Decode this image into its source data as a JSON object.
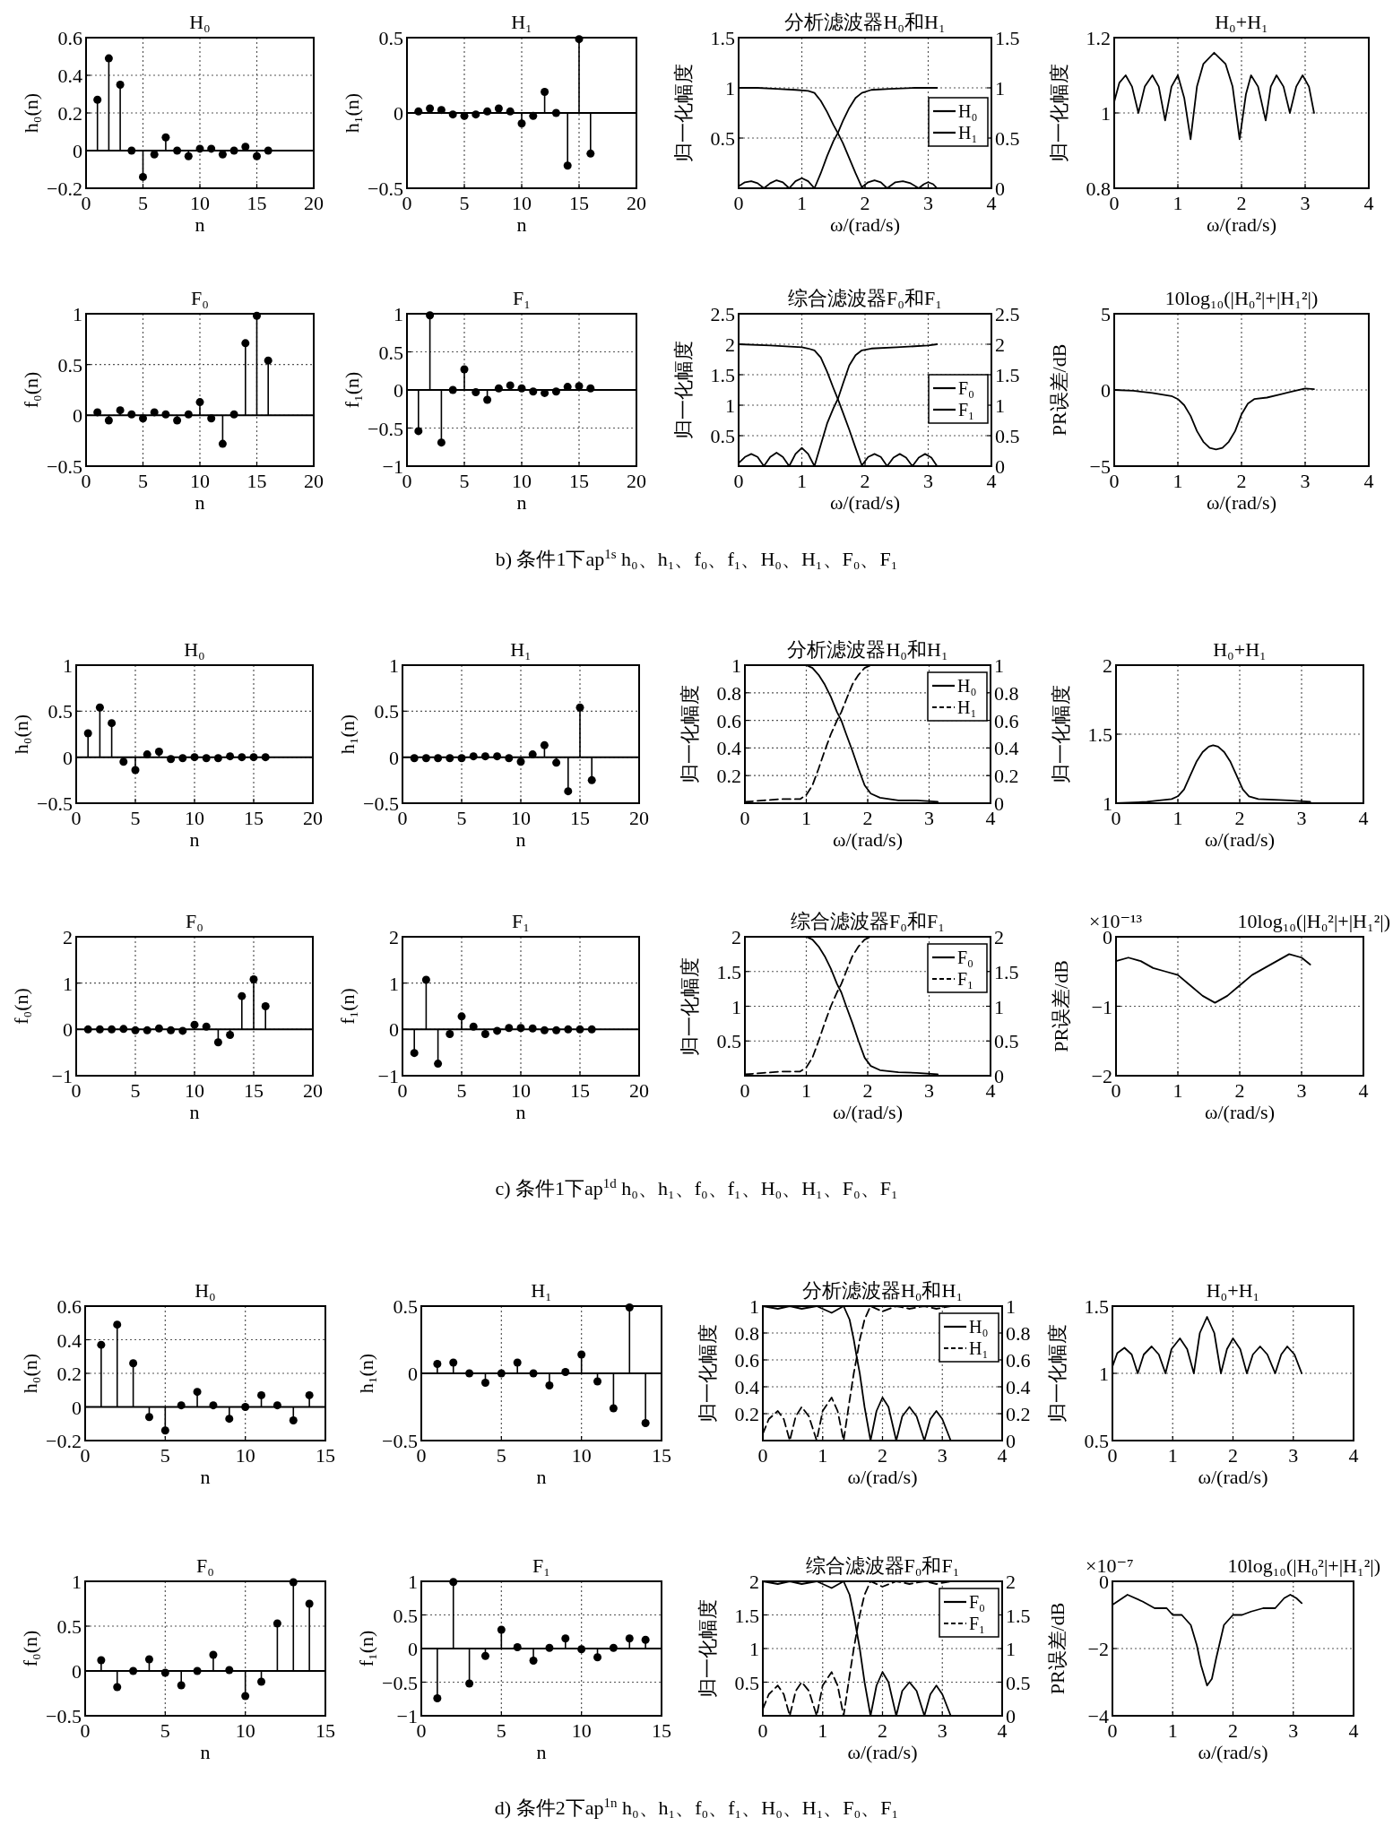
{
  "chart_data": [
    {
      "type": "lollipop",
      "title": "H₀",
      "xlabel": "n",
      "ylabel": "h₀(n)",
      "xlim": [
        0,
        20
      ],
      "xticks": [
        0,
        5,
        10,
        15,
        20
      ],
      "ylim": [
        -0.2,
        0.6
      ],
      "yticks": [
        -0.2,
        0,
        0.2,
        0.4,
        0.6
      ],
      "grid": true,
      "marker": "circle",
      "annotations": [
        "b) 条件1下ap$^{1s}$ h₀、h₁、f₀、f₁、H₀、H₁、F₀、F₁"
      ],
      "series": [
        {
          "color": "#000000",
          "x": [
            1,
            2,
            3,
            4,
            5,
            6,
            7,
            8,
            9,
            10,
            11,
            12,
            13,
            14,
            15,
            16
          ],
          "values": [
            0.27,
            0.49,
            0.35,
            0.0,
            -0.14,
            -0.02,
            0.07,
            0.0,
            -0.03,
            0.01,
            0.01,
            -0.02,
            0.0,
            0.02,
            -0.03,
            0.0
          ]
        }
      ]
    },
    {
      "type": "lollipop",
      "title": "H₁",
      "xlabel": "n",
      "ylabel": "h₁(n)",
      "xlim": [
        0,
        20
      ],
      "xticks": [
        0,
        5,
        10,
        15,
        20
      ],
      "ylim": [
        -0.5,
        0.5
      ],
      "yticks": [
        -0.5,
        0,
        0.5
      ],
      "grid": true,
      "marker": "circle",
      "series": [
        {
          "color": "#000000",
          "x": [
            1,
            2,
            3,
            4,
            5,
            6,
            7,
            8,
            9,
            10,
            11,
            12,
            13,
            14,
            15,
            16
          ],
          "values": [
            0.01,
            0.03,
            0.02,
            -0.01,
            -0.02,
            -0.01,
            0.01,
            0.03,
            0.01,
            -0.07,
            -0.02,
            0.14,
            0.0,
            -0.35,
            0.49,
            -0.27
          ]
        }
      ]
    },
    {
      "type": "line",
      "title": "分析滤波器H₀和H₁",
      "xlabel": "ω/(rad/s)",
      "ylabel": "归一化幅度",
      "xlim": [
        0,
        4
      ],
      "xticks": [
        0,
        1,
        2,
        3,
        4
      ],
      "ylim": [
        0,
        1.5
      ],
      "yticks": [
        0.5,
        1,
        1.5
      ],
      "y2lim": [
        0,
        1.5
      ],
      "y2ticks": [
        0,
        0.5,
        1,
        1.5
      ],
      "grid": true,
      "legend": "right",
      "series": [
        {
          "name": "H₀",
          "color": "#000000",
          "line_style": "solid",
          "x": [
            0,
            0.3,
            0.6,
            0.9,
            1.1,
            1.2,
            1.3,
            1.4,
            1.5,
            1.57,
            1.65,
            1.75,
            1.85,
            1.95,
            2.05,
            2.15,
            2.25,
            2.35,
            2.48,
            2.6,
            2.72,
            2.85,
            2.93,
            3.0,
            3.08,
            3.14
          ],
          "values": [
            1.0,
            1.0,
            0.99,
            0.98,
            0.97,
            0.95,
            0.87,
            0.76,
            0.63,
            0.55,
            0.45,
            0.3,
            0.15,
            0.01,
            0.06,
            0.08,
            0.06,
            0.0,
            0.06,
            0.07,
            0.05,
            0.0,
            0.04,
            0.06,
            0.04,
            0.0
          ]
        },
        {
          "name": "H₁",
          "color": "#000000",
          "line_style": "solid",
          "x": [
            0,
            0.1,
            0.2,
            0.3,
            0.4,
            0.5,
            0.6,
            0.7,
            0.8,
            0.9,
            1.0,
            1.1,
            1.2,
            1.3,
            1.4,
            1.5,
            1.57,
            1.65,
            1.75,
            1.85,
            1.95,
            2.1,
            2.4,
            2.8,
            3.14
          ],
          "values": [
            0.02,
            0.06,
            0.07,
            0.05,
            0.0,
            0.05,
            0.08,
            0.06,
            0.0,
            0.07,
            0.1,
            0.07,
            0.0,
            0.15,
            0.32,
            0.47,
            0.55,
            0.67,
            0.8,
            0.9,
            0.95,
            0.98,
            0.99,
            1.0,
            1.0
          ]
        }
      ]
    },
    {
      "type": "line",
      "title": "H₀+H₁",
      "xlabel": "ω/(rad/s)",
      "ylabel": "归一化幅度",
      "xlim": [
        0,
        4
      ],
      "xticks": [
        0,
        1,
        2,
        3,
        4
      ],
      "ylim": [
        0.8,
        1.2
      ],
      "yticks": [
        0.8,
        1,
        1.2
      ],
      "grid": true,
      "series": [
        {
          "color": "#000000",
          "x": [
            0,
            0.08,
            0.18,
            0.28,
            0.38,
            0.48,
            0.6,
            0.7,
            0.8,
            0.9,
            1.0,
            1.1,
            1.2,
            1.3,
            1.4,
            1.57,
            1.75,
            1.86,
            1.97,
            2.07,
            2.15,
            2.26,
            2.38,
            2.46,
            2.55,
            2.66,
            2.76,
            2.86,
            2.96,
            3.06,
            3.14
          ],
          "values": [
            1.03,
            1.08,
            1.1,
            1.07,
            1.0,
            1.07,
            1.1,
            1.07,
            0.98,
            1.07,
            1.1,
            1.04,
            0.93,
            1.07,
            1.13,
            1.16,
            1.13,
            1.07,
            0.93,
            1.05,
            1.1,
            1.07,
            0.98,
            1.07,
            1.1,
            1.07,
            1.0,
            1.07,
            1.1,
            1.07,
            1.0
          ]
        }
      ]
    },
    {
      "type": "lollipop",
      "title": "F₀",
      "xlabel": "n",
      "ylabel": "f₀(n)",
      "xlim": [
        0,
        20
      ],
      "xticks": [
        0,
        5,
        10,
        15,
        20
      ],
      "ylim": [
        -0.5,
        1
      ],
      "yticks": [
        -0.5,
        0,
        0.5,
        1
      ],
      "grid": true,
      "marker": "circle",
      "series": [
        {
          "color": "#000000",
          "x": [
            1,
            2,
            3,
            4,
            5,
            6,
            7,
            8,
            9,
            10,
            11,
            12,
            13,
            14,
            15,
            16
          ],
          "values": [
            0.03,
            -0.05,
            0.05,
            0.01,
            -0.03,
            0.03,
            0.01,
            -0.05,
            0.01,
            0.13,
            -0.03,
            -0.28,
            0.01,
            0.71,
            0.98,
            0.54
          ]
        }
      ]
    },
    {
      "type": "lollipop",
      "title": "F₁",
      "xlabel": "n",
      "ylabel": "f₁(n)",
      "xlim": [
        0,
        20
      ],
      "xticks": [
        0,
        5,
        10,
        15,
        20
      ],
      "ylim": [
        -1,
        1
      ],
      "yticks": [
        -1,
        -0.5,
        0,
        0.5,
        1
      ],
      "grid": true,
      "marker": "circle",
      "series": [
        {
          "color": "#000000",
          "x": [
            1,
            2,
            3,
            4,
            5,
            6,
            7,
            8,
            9,
            10,
            11,
            12,
            13,
            14,
            15,
            16
          ],
          "values": [
            -0.54,
            0.98,
            -0.69,
            0.0,
            0.27,
            -0.03,
            -0.13,
            0.02,
            0.06,
            0.02,
            -0.02,
            -0.04,
            -0.02,
            0.04,
            0.05,
            0.02
          ]
        }
      ]
    },
    {
      "type": "line",
      "title": "综合滤波器F₀和F₁",
      "xlabel": "ω/(rad/s)",
      "ylabel": "归一化幅度",
      "xlim": [
        0,
        4
      ],
      "xticks": [
        0,
        1,
        2,
        3,
        4
      ],
      "ylim": [
        0,
        2.5
      ],
      "yticks": [
        0.5,
        1,
        1.5,
        2,
        2.5
      ],
      "y2lim": [
        0,
        2.5
      ],
      "y2ticks": [
        0,
        0.5,
        1,
        1.5,
        2,
        2.5
      ],
      "grid": true,
      "legend": "right",
      "series": [
        {
          "name": "F₀",
          "color": "#000000",
          "line_style": "solid",
          "x": [
            0,
            0.5,
            1.0,
            1.1,
            1.2,
            1.3,
            1.4,
            1.5,
            1.57,
            1.65,
            1.75,
            1.85,
            1.95,
            2.05,
            2.15,
            2.25,
            2.35,
            2.45,
            2.55,
            2.65,
            2.75,
            2.85,
            2.95,
            3.05,
            3.14
          ],
          "values": [
            2.0,
            1.98,
            1.95,
            1.93,
            1.9,
            1.78,
            1.55,
            1.28,
            1.1,
            0.88,
            0.6,
            0.3,
            0.01,
            0.15,
            0.2,
            0.15,
            0.0,
            0.14,
            0.2,
            0.14,
            0.0,
            0.14,
            0.2,
            0.14,
            0.0
          ]
        },
        {
          "name": "F₁",
          "color": "#000000",
          "line_style": "solid",
          "x": [
            0,
            0.1,
            0.2,
            0.3,
            0.4,
            0.5,
            0.6,
            0.7,
            0.8,
            0.9,
            1.0,
            1.1,
            1.2,
            1.3,
            1.4,
            1.5,
            1.57,
            1.65,
            1.75,
            1.85,
            1.95,
            2.1,
            2.5,
            3.0,
            3.14
          ],
          "values": [
            0.05,
            0.15,
            0.2,
            0.15,
            0.0,
            0.15,
            0.22,
            0.15,
            0.0,
            0.2,
            0.3,
            0.2,
            0.0,
            0.35,
            0.7,
            0.95,
            1.1,
            1.35,
            1.65,
            1.82,
            1.9,
            1.93,
            1.95,
            1.98,
            2.0
          ]
        }
      ]
    },
    {
      "type": "line",
      "title": "10log₁₀(|H₀²|+|H₁²|)",
      "xlabel": "ω/(rad/s)",
      "ylabel": "PR误差/dB",
      "xlim": [
        0,
        4
      ],
      "xticks": [
        0,
        1,
        2,
        3,
        4
      ],
      "ylim": [
        -5,
        5
      ],
      "yticks": [
        -5,
        0,
        5
      ],
      "grid": true,
      "series": [
        {
          "color": "#000000",
          "x": [
            0,
            0.3,
            0.6,
            0.9,
            1.0,
            1.1,
            1.2,
            1.3,
            1.4,
            1.5,
            1.6,
            1.7,
            1.8,
            1.9,
            2.0,
            2.1,
            2.2,
            2.4,
            2.6,
            2.8,
            3.0,
            3.14
          ],
          "values": [
            0.0,
            -0.05,
            -0.2,
            -0.4,
            -0.6,
            -1.0,
            -1.7,
            -2.7,
            -3.4,
            -3.8,
            -3.9,
            -3.8,
            -3.4,
            -2.7,
            -1.6,
            -0.9,
            -0.6,
            -0.5,
            -0.3,
            -0.1,
            0.1,
            0.05
          ]
        }
      ]
    },
    {
      "type": "lollipop",
      "title": "H₀",
      "xlabel": "n",
      "ylabel": "h₀(n)",
      "xlim": [
        0,
        20
      ],
      "xticks": [
        0,
        5,
        10,
        15,
        20
      ],
      "ylim": [
        -0.5,
        1
      ],
      "yticks": [
        -0.5,
        0,
        0.5,
        1
      ],
      "grid": true,
      "marker": "circle",
      "annotations": [
        "c) 条件1下ap$^{1d}$ h₀、h₁、f₀、f₁、H₀、H₁、F₀、F₁"
      ],
      "series": [
        {
          "color": "#000000",
          "x": [
            1,
            2,
            3,
            4,
            5,
            6,
            7,
            8,
            9,
            10,
            11,
            12,
            13,
            14,
            15,
            16
          ],
          "values": [
            0.26,
            0.54,
            0.37,
            -0.05,
            -0.14,
            0.03,
            0.06,
            -0.02,
            -0.01,
            0.0,
            -0.01,
            -0.01,
            0.01,
            0.0,
            0.0,
            0.0
          ]
        }
      ]
    },
    {
      "type": "lollipop",
      "title": "H₁",
      "xlabel": "n",
      "ylabel": "h₁(n)",
      "xlim": [
        0,
        20
      ],
      "xticks": [
        0,
        5,
        10,
        15,
        20
      ],
      "ylim": [
        -0.5,
        1
      ],
      "yticks": [
        -0.5,
        0,
        0.5,
        1
      ],
      "grid": true,
      "marker": "circle",
      "series": [
        {
          "color": "#000000",
          "x": [
            1,
            2,
            3,
            4,
            5,
            6,
            7,
            8,
            9,
            10,
            11,
            12,
            13,
            14,
            15,
            16
          ],
          "values": [
            -0.01,
            -0.01,
            -0.01,
            -0.01,
            -0.01,
            0.01,
            0.01,
            0.01,
            -0.01,
            -0.05,
            0.03,
            0.13,
            -0.06,
            -0.37,
            0.54,
            -0.25
          ]
        }
      ]
    },
    {
      "type": "line",
      "title": "分析滤波器H₀和H₁",
      "xlabel": "ω/(rad/s)",
      "ylabel": "归一化幅度",
      "xlim": [
        0,
        4
      ],
      "xticks": [
        0,
        1,
        2,
        3,
        4
      ],
      "ylim": [
        0,
        1
      ],
      "yticks": [
        0.2,
        0.4,
        0.6,
        0.8,
        1
      ],
      "y2lim": [
        0,
        1
      ],
      "y2ticks": [
        0,
        0.2,
        0.4,
        0.6,
        0.8,
        1
      ],
      "grid": true,
      "legend": "top right",
      "series": [
        {
          "name": "H₀",
          "color": "#000000",
          "line_style": "solid",
          "x": [
            0,
            0.5,
            0.9,
            1.0,
            1.1,
            1.2,
            1.3,
            1.4,
            1.5,
            1.57,
            1.65,
            1.75,
            1.85,
            1.95,
            2.05,
            2.2,
            2.5,
            2.8,
            3.14
          ],
          "values": [
            1,
            1,
            1,
            1,
            0.98,
            0.93,
            0.86,
            0.77,
            0.66,
            0.6,
            0.5,
            0.38,
            0.25,
            0.13,
            0.07,
            0.04,
            0.02,
            0.02,
            0.01
          ]
        },
        {
          "name": "H₁",
          "color": "#000000",
          "line_style": "dashed",
          "x": [
            0,
            0.3,
            0.6,
            0.9,
            1.0,
            1.1,
            1.2,
            1.3,
            1.4,
            1.5,
            1.57,
            1.65,
            1.75,
            1.85,
            1.95,
            2.05,
            2.1,
            2.5,
            3.14
          ],
          "values": [
            0.01,
            0.02,
            0.03,
            0.03,
            0.06,
            0.13,
            0.25,
            0.38,
            0.5,
            0.6,
            0.66,
            0.75,
            0.86,
            0.93,
            0.98,
            1,
            1,
            1,
            1
          ]
        }
      ]
    },
    {
      "type": "line",
      "title": "H₀+H₁",
      "xlabel": "ω/(rad/s)",
      "ylabel": "归一化幅度",
      "xlim": [
        0,
        4
      ],
      "xticks": [
        0,
        1,
        2,
        3,
        4
      ],
      "ylim": [
        1,
        2
      ],
      "yticks": [
        1,
        1.5,
        2
      ],
      "grid": true,
      "series": [
        {
          "color": "#000000",
          "x": [
            0,
            0.5,
            0.9,
            1.0,
            1.1,
            1.2,
            1.3,
            1.4,
            1.5,
            1.57,
            1.65,
            1.75,
            1.85,
            1.95,
            2.05,
            2.15,
            2.3,
            2.8,
            3.14
          ],
          "values": [
            1.0,
            1.01,
            1.03,
            1.05,
            1.1,
            1.2,
            1.3,
            1.37,
            1.41,
            1.42,
            1.41,
            1.37,
            1.3,
            1.2,
            1.1,
            1.05,
            1.03,
            1.02,
            1.01
          ]
        }
      ]
    },
    {
      "type": "lollipop",
      "title": "F₀",
      "xlabel": "n",
      "ylabel": "f₀(n)",
      "xlim": [
        0,
        20
      ],
      "xticks": [
        0,
        5,
        10,
        15,
        20
      ],
      "ylim": [
        -1,
        2
      ],
      "yticks": [
        -1,
        0,
        1,
        2
      ],
      "grid": true,
      "marker": "circle",
      "series": [
        {
          "color": "#000000",
          "x": [
            1,
            2,
            3,
            4,
            5,
            6,
            7,
            8,
            9,
            10,
            11,
            12,
            13,
            14,
            15,
            16
          ],
          "values": [
            0.0,
            0.0,
            0.0,
            0.01,
            -0.02,
            -0.02,
            0.02,
            -0.02,
            -0.03,
            0.1,
            0.06,
            -0.28,
            -0.12,
            0.72,
            1.08,
            0.5
          ]
        }
      ]
    },
    {
      "type": "lollipop",
      "title": "F₁",
      "xlabel": "n",
      "ylabel": "f₁(n)",
      "xlim": [
        0,
        20
      ],
      "xticks": [
        0,
        5,
        10,
        15,
        20
      ],
      "ylim": [
        -1,
        2
      ],
      "yticks": [
        -1,
        0,
        1,
        2
      ],
      "grid": true,
      "marker": "circle",
      "series": [
        {
          "color": "#000000",
          "x": [
            1,
            2,
            3,
            4,
            5,
            6,
            7,
            8,
            9,
            10,
            11,
            12,
            13,
            14,
            15,
            16
          ],
          "values": [
            -0.51,
            1.07,
            -0.74,
            -0.1,
            0.28,
            0.06,
            -0.1,
            -0.03,
            0.03,
            0.03,
            0.02,
            -0.02,
            -0.02,
            0.0,
            0.0,
            0.0
          ]
        }
      ]
    },
    {
      "type": "line",
      "title": "综合滤波器F₀和F₁",
      "xlabel": "ω/(rad/s)",
      "ylabel": "归一化幅度",
      "xlim": [
        0,
        4
      ],
      "xticks": [
        0,
        1,
        2,
        3,
        4
      ],
      "ylim": [
        0,
        2
      ],
      "yticks": [
        0.5,
        1,
        1.5,
        2
      ],
      "y2lim": [
        0,
        2
      ],
      "y2ticks": [
        0,
        0.5,
        1,
        1.5,
        2
      ],
      "grid": true,
      "legend": "top right",
      "series": [
        {
          "name": "F₀",
          "color": "#000000",
          "line_style": "solid",
          "x": [
            0,
            0.5,
            0.9,
            1.0,
            1.1,
            1.2,
            1.3,
            1.4,
            1.5,
            1.57,
            1.65,
            1.75,
            1.85,
            1.95,
            2.05,
            2.2,
            2.5,
            2.8,
            3.14
          ],
          "values": [
            2,
            2,
            2,
            2,
            1.96,
            1.86,
            1.72,
            1.54,
            1.32,
            1.2,
            1.0,
            0.76,
            0.5,
            0.26,
            0.14,
            0.08,
            0.05,
            0.04,
            0.02
          ]
        },
        {
          "name": "F₁",
          "color": "#000000",
          "line_style": "dashed",
          "x": [
            0,
            0.3,
            0.6,
            0.9,
            1.0,
            1.1,
            1.2,
            1.3,
            1.4,
            1.5,
            1.57,
            1.65,
            1.75,
            1.85,
            1.95,
            2.05,
            2.1,
            2.5,
            3.14
          ],
          "values": [
            0.02,
            0.04,
            0.06,
            0.06,
            0.12,
            0.26,
            0.5,
            0.76,
            1.0,
            1.2,
            1.32,
            1.5,
            1.72,
            1.86,
            1.96,
            2,
            2,
            2,
            2
          ]
        }
      ]
    },
    {
      "type": "line",
      "title": "10log₁₀(|H₀²|+|H₁²|)",
      "xlabel": "ω/(rad/s)",
      "ylabel": "PR误差/dB",
      "xlim": [
        0,
        4
      ],
      "xticks": [
        0,
        1,
        2,
        3,
        4
      ],
      "ylim": [
        -2,
        0
      ],
      "yticks": [
        -2,
        -1,
        0
      ],
      "grid": true,
      "annotations": [
        "×10⁻¹³"
      ],
      "series": [
        {
          "color": "#000000",
          "x": [
            0,
            0.2,
            0.4,
            0.6,
            0.8,
            1.0,
            1.2,
            1.4,
            1.6,
            1.8,
            2.0,
            2.2,
            2.4,
            2.6,
            2.8,
            3.0,
            3.14
          ],
          "values": [
            -0.35,
            -0.3,
            -0.35,
            -0.45,
            -0.5,
            -0.55,
            -0.7,
            -0.85,
            -0.95,
            -0.85,
            -0.7,
            -0.55,
            -0.45,
            -0.35,
            -0.25,
            -0.3,
            -0.4
          ]
        }
      ]
    },
    {
      "type": "lollipop",
      "title": "H₀",
      "xlabel": "n",
      "ylabel": "h₀(n)",
      "xlim": [
        0,
        15
      ],
      "xticks": [
        0,
        5,
        10,
        15
      ],
      "ylim": [
        -0.2,
        0.6
      ],
      "yticks": [
        -0.2,
        0,
        0.2,
        0.4,
        0.6
      ],
      "grid": true,
      "marker": "circle",
      "annotations": [
        "d) 条件2下ap$^{1n}$ h₀、h₁、f₀、f₁、H₀、H₁、F₀、F₁"
      ],
      "series": [
        {
          "color": "#000000",
          "x": [
            1,
            2,
            3,
            4,
            5,
            6,
            7,
            8,
            9,
            10,
            11,
            12,
            13,
            14
          ],
          "values": [
            0.37,
            0.49,
            0.26,
            -0.06,
            -0.14,
            0.01,
            0.09,
            0.01,
            -0.07,
            0.0,
            0.07,
            0.01,
            -0.08,
            0.07
          ]
        }
      ]
    },
    {
      "type": "lollipop",
      "title": "H₁",
      "xlabel": "n",
      "ylabel": "h₁(n)",
      "xlim": [
        0,
        15
      ],
      "xticks": [
        0,
        5,
        10,
        15
      ],
      "ylim": [
        -0.5,
        0.5
      ],
      "yticks": [
        -0.5,
        0,
        0.5
      ],
      "grid": true,
      "marker": "circle",
      "series": [
        {
          "color": "#000000",
          "x": [
            1,
            2,
            3,
            4,
            5,
            6,
            7,
            8,
            9,
            10,
            11,
            12,
            13,
            14
          ],
          "values": [
            0.07,
            0.08,
            0.0,
            -0.07,
            0.0,
            0.08,
            0.0,
            -0.09,
            0.01,
            0.14,
            -0.06,
            -0.26,
            0.49,
            -0.37
          ]
        }
      ]
    },
    {
      "type": "line",
      "title": "分析滤波器H₀和H₁",
      "xlabel": "ω/(rad/s)",
      "ylabel": "归一化幅度",
      "xlim": [
        0,
        4
      ],
      "xticks": [
        0,
        1,
        2,
        3,
        4
      ],
      "ylim": [
        0,
        1
      ],
      "yticks": [
        0.2,
        0.4,
        0.6,
        0.8,
        1
      ],
      "y2lim": [
        0,
        1
      ],
      "y2ticks": [
        0,
        0.2,
        0.4,
        0.6,
        0.8,
        1
      ],
      "grid": true,
      "legend": "top right",
      "series": [
        {
          "name": "H₀",
          "color": "#000000",
          "line_style": "solid",
          "x": [
            0,
            0.25,
            0.45,
            0.65,
            0.9,
            1.15,
            1.35,
            1.45,
            1.52,
            1.57,
            1.62,
            1.7,
            1.8,
            1.9,
            2.0,
            2.1,
            2.23,
            2.33,
            2.45,
            2.57,
            2.7,
            2.8,
            2.9,
            3.0,
            3.14
          ],
          "values": [
            1.0,
            0.98,
            1.0,
            0.98,
            1.0,
            0.95,
            1.0,
            0.9,
            0.75,
            0.62,
            0.5,
            0.25,
            0.0,
            0.22,
            0.32,
            0.25,
            0.0,
            0.18,
            0.25,
            0.18,
            0.0,
            0.16,
            0.22,
            0.16,
            0.0
          ]
        },
        {
          "name": "H₁",
          "color": "#000000",
          "line_style": "dashed",
          "x": [
            0,
            0.1,
            0.25,
            0.35,
            0.45,
            0.55,
            0.65,
            0.77,
            0.9,
            1.0,
            1.15,
            1.25,
            1.35,
            1.45,
            1.52,
            1.57,
            1.62,
            1.7,
            1.8,
            2.0,
            2.23,
            2.45,
            2.7,
            2.9,
            3.14
          ],
          "values": [
            0.05,
            0.16,
            0.22,
            0.16,
            0.0,
            0.18,
            0.25,
            0.18,
            0.0,
            0.22,
            0.32,
            0.22,
            0.0,
            0.3,
            0.5,
            0.62,
            0.75,
            0.9,
            1.0,
            0.96,
            1.0,
            0.98,
            1.0,
            0.98,
            1.0
          ]
        }
      ]
    },
    {
      "type": "line",
      "title": "H₀+H₁",
      "xlabel": "ω/(rad/s)",
      "ylabel": "归一化幅度",
      "xlim": [
        0,
        4
      ],
      "xticks": [
        0,
        1,
        2,
        3,
        4
      ],
      "ylim": [
        0.5,
        1.5
      ],
      "yticks": [
        0.5,
        1,
        1.5
      ],
      "grid": true,
      "series": [
        {
          "color": "#000000",
          "x": [
            0,
            0.08,
            0.2,
            0.32,
            0.42,
            0.52,
            0.65,
            0.77,
            0.88,
            0.98,
            1.12,
            1.24,
            1.35,
            1.45,
            1.57,
            1.69,
            1.8,
            1.9,
            2.0,
            2.12,
            2.23,
            2.33,
            2.45,
            2.57,
            2.7,
            2.8,
            2.9,
            3.02,
            3.14
          ],
          "values": [
            1.05,
            1.15,
            1.19,
            1.14,
            1.0,
            1.14,
            1.2,
            1.14,
            1.0,
            1.18,
            1.26,
            1.18,
            1.0,
            1.3,
            1.42,
            1.3,
            1.0,
            1.18,
            1.26,
            1.18,
            1.0,
            1.14,
            1.2,
            1.14,
            1.0,
            1.14,
            1.2,
            1.14,
            1.0
          ]
        }
      ]
    },
    {
      "type": "lollipop",
      "title": "F₀",
      "xlabel": "n",
      "ylabel": "f₀(n)",
      "xlim": [
        0,
        15
      ],
      "xticks": [
        0,
        5,
        10,
        15
      ],
      "ylim": [
        -0.5,
        1
      ],
      "yticks": [
        -0.5,
        0,
        0.5,
        1
      ],
      "grid": true,
      "marker": "circle",
      "series": [
        {
          "color": "#000000",
          "x": [
            1,
            2,
            3,
            4,
            5,
            6,
            7,
            8,
            9,
            10,
            11,
            12,
            13,
            14
          ],
          "values": [
            0.12,
            -0.18,
            0.0,
            0.13,
            -0.02,
            -0.16,
            0.0,
            0.18,
            0.01,
            -0.28,
            -0.12,
            0.53,
            0.99,
            0.75
          ]
        }
      ]
    },
    {
      "type": "lollipop",
      "title": "F₁",
      "xlabel": "n",
      "ylabel": "f₁(n)",
      "xlim": [
        0,
        15
      ],
      "xticks": [
        0,
        5,
        10,
        15
      ],
      "ylim": [
        -1,
        1
      ],
      "yticks": [
        -1,
        -0.5,
        0,
        0.5,
        1
      ],
      "grid": true,
      "marker": "circle",
      "series": [
        {
          "color": "#000000",
          "x": [
            1,
            2,
            3,
            4,
            5,
            6,
            7,
            8,
            9,
            10,
            11,
            12,
            13,
            14
          ],
          "values": [
            -0.74,
            0.99,
            -0.52,
            -0.11,
            0.28,
            0.02,
            -0.18,
            0.01,
            0.15,
            -0.01,
            -0.13,
            0.01,
            0.15,
            0.13
          ]
        }
      ]
    },
    {
      "type": "line",
      "title": "综合滤波器F₀和F₁",
      "xlabel": "ω/(rad/s)",
      "ylabel": "归一化幅度",
      "xlim": [
        0,
        4
      ],
      "xticks": [
        0,
        1,
        2,
        3,
        4
      ],
      "ylim": [
        0,
        2
      ],
      "yticks": [
        0.5,
        1,
        1.5,
        2
      ],
      "y2lim": [
        0,
        2
      ],
      "y2ticks": [
        0,
        0.5,
        1,
        1.5,
        2
      ],
      "grid": true,
      "legend": "top right",
      "series": [
        {
          "name": "F₀",
          "color": "#000000",
          "line_style": "solid",
          "x": [
            0,
            0.25,
            0.45,
            0.65,
            0.9,
            1.15,
            1.35,
            1.45,
            1.52,
            1.57,
            1.62,
            1.7,
            1.8,
            1.9,
            2.0,
            2.1,
            2.23,
            2.33,
            2.45,
            2.57,
            2.7,
            2.8,
            2.9,
            3.0,
            3.14
          ],
          "values": [
            2.0,
            1.96,
            2.0,
            1.96,
            2.0,
            1.9,
            2.0,
            1.8,
            1.5,
            1.25,
            1.0,
            0.5,
            0.0,
            0.45,
            0.65,
            0.5,
            0.0,
            0.37,
            0.5,
            0.37,
            0.0,
            0.32,
            0.45,
            0.32,
            0.0
          ]
        },
        {
          "name": "F₁",
          "color": "#000000",
          "line_style": "dashed",
          "x": [
            0,
            0.1,
            0.25,
            0.35,
            0.45,
            0.55,
            0.65,
            0.77,
            0.9,
            1.0,
            1.15,
            1.25,
            1.35,
            1.45,
            1.52,
            1.57,
            1.62,
            1.7,
            1.8,
            2.0,
            2.23,
            2.45,
            2.7,
            2.9,
            3.14
          ],
          "values": [
            0.1,
            0.32,
            0.45,
            0.32,
            0.0,
            0.37,
            0.5,
            0.37,
            0.0,
            0.45,
            0.65,
            0.45,
            0.0,
            0.6,
            1.0,
            1.25,
            1.5,
            1.8,
            2.0,
            1.92,
            2.0,
            1.96,
            2.0,
            1.96,
            2.0
          ]
        }
      ]
    },
    {
      "type": "line",
      "title": "10log₁₀(|H₀²|+|H₁²|)",
      "xlabel": "ω/(rad/s)",
      "ylabel": "PR误差/dB",
      "xlim": [
        0,
        4
      ],
      "xticks": [
        0,
        1,
        2,
        3,
        4
      ],
      "ylim": [
        -4,
        0
      ],
      "yticks": [
        -4,
        -2,
        0
      ],
      "grid": true,
      "annotations": [
        "×10⁻⁷"
      ],
      "series": [
        {
          "color": "#000000",
          "x": [
            0,
            0.25,
            0.5,
            0.7,
            0.9,
            1.0,
            1.15,
            1.3,
            1.4,
            1.47,
            1.57,
            1.65,
            1.72,
            1.85,
            2.0,
            2.15,
            2.3,
            2.5,
            2.7,
            2.85,
            2.95,
            3.05,
            3.14
          ],
          "values": [
            -0.7,
            -0.4,
            -0.6,
            -0.8,
            -0.8,
            -1.0,
            -1.0,
            -1.3,
            -1.9,
            -2.5,
            -3.1,
            -2.9,
            -2.3,
            -1.3,
            -1.0,
            -1.0,
            -0.9,
            -0.8,
            -0.8,
            -0.5,
            -0.4,
            -0.5,
            -0.65
          ]
        }
      ]
    }
  ]
}
